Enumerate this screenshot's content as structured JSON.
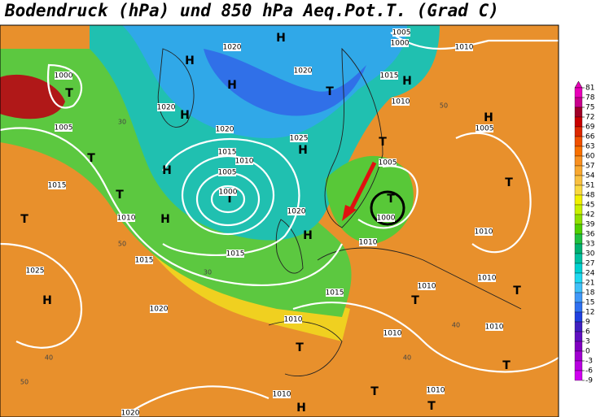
{
  "title": "Bodendruck (hPa) und 850 hPa Aeq.Pot.T. (Grad C)",
  "map": {
    "labels": [
      "H",
      "H",
      "H",
      "H",
      "H",
      "H",
      "H",
      "H",
      "H",
      "H",
      "H",
      "H",
      "T",
      "T",
      "T",
      "T",
      "T",
      "T",
      "T",
      "T",
      "T",
      "T",
      "T",
      "T",
      "T",
      "T",
      "T",
      "1000",
      "1005",
      "1015",
      "1010",
      "1015",
      "1025",
      "1020",
      "1020",
      "1020",
      "1020",
      "1015",
      "1010",
      "1005",
      "1000",
      "1015",
      "1020",
      "1025",
      "1020",
      "1000",
      "1005",
      "1015",
      "1010",
      "1010",
      "1005",
      "1000",
      "1010",
      "1015",
      "1010",
      "1010",
      "1010",
      "1010",
      "1010",
      "1010",
      "1010",
      "1010",
      "1005",
      "1020",
      "50",
      "40",
      "30",
      "50",
      "40",
      "30",
      "50",
      "40"
    ]
  },
  "legend": {
    "ticks": [
      81,
      78,
      75,
      72,
      69,
      66,
      63,
      60,
      57,
      54,
      51,
      48,
      45,
      42,
      39,
      36,
      33,
      30,
      27,
      24,
      21,
      18,
      15,
      12,
      9,
      6,
      3,
      0,
      -3,
      -6,
      -9
    ],
    "colors": [
      "#e800b8",
      "#c8008c",
      "#a00028",
      "#c80000",
      "#dc2800",
      "#f05000",
      "#f87000",
      "#f89020",
      "#f8a830",
      "#f8c040",
      "#f8d840",
      "#f0f000",
      "#c8f000",
      "#90e000",
      "#50d000",
      "#20c040",
      "#00b070",
      "#00c0a0",
      "#00d0d0",
      "#20d8f0",
      "#40c0f8",
      "#4098f8",
      "#3070f0",
      "#2040e0",
      "#4020c0",
      "#6010c0",
      "#8000c0",
      "#a000d0",
      "#b800e0",
      "#d000f0"
    ]
  }
}
